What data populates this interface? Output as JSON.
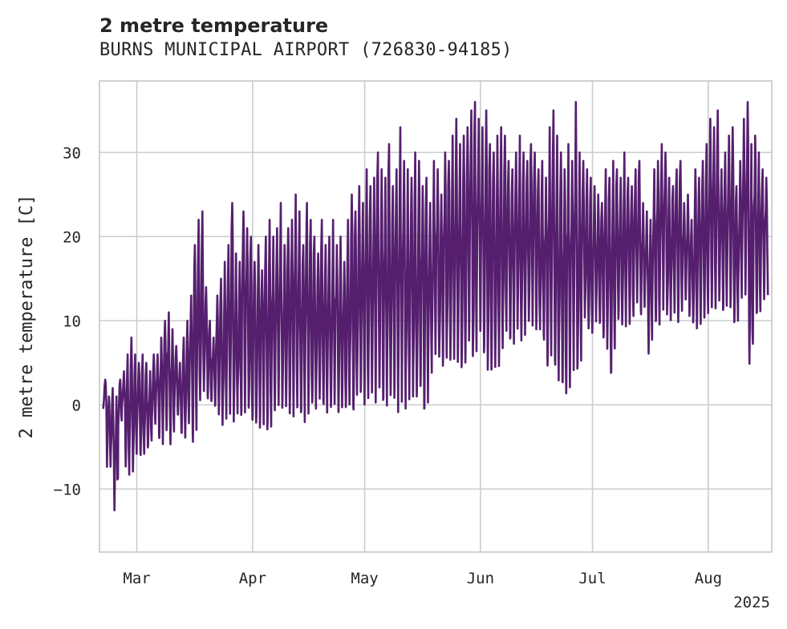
{
  "header": {
    "title": "2 metre temperature",
    "subtitle": "BURNS MUNICIPAL AIRPORT (726830-94185)"
  },
  "colors": {
    "series": "#551f6e",
    "grid": "#cccccc",
    "axis": "#cccccc",
    "text": "#262626"
  },
  "chart_data": {
    "type": "line",
    "title": "2 metre temperature",
    "subtitle": "BURNS MUNICIPAL AIRPORT (726830-94185)",
    "xlabel": "",
    "ylabel": "2 metre temperature [C]",
    "year_label": "2025",
    "xlim": [
      "2025-02-19",
      "2025-08-18"
    ],
    "ylim": [
      -17.5,
      38.5
    ],
    "x_ticks": [
      {
        "date": "2025-03-01",
        "label": "Mar"
      },
      {
        "date": "2025-04-01",
        "label": "Apr"
      },
      {
        "date": "2025-05-01",
        "label": "May"
      },
      {
        "date": "2025-06-01",
        "label": "Jun"
      },
      {
        "date": "2025-07-01",
        "label": "Jul"
      },
      {
        "date": "2025-08-01",
        "label": "Aug"
      }
    ],
    "y_ticks": [
      -10,
      0,
      10,
      20,
      30
    ],
    "grid": true,
    "legend": "none",
    "series": [
      {
        "x": [
          "2025-02-20",
          "2025-02-21",
          "2025-02-22",
          "2025-02-23",
          "2025-02-24",
          "2025-02-25",
          "2025-02-26",
          "2025-02-27",
          "2025-02-28",
          "2025-03-01",
          "2025-03-02",
          "2025-03-03",
          "2025-03-04",
          "2025-03-05",
          "2025-03-06",
          "2025-03-07",
          "2025-03-08",
          "2025-03-09",
          "2025-03-10",
          "2025-03-11",
          "2025-03-12",
          "2025-03-13",
          "2025-03-14",
          "2025-03-15",
          "2025-03-16",
          "2025-03-17",
          "2025-03-18",
          "2025-03-19",
          "2025-03-20",
          "2025-03-21",
          "2025-03-22",
          "2025-03-23",
          "2025-03-24",
          "2025-03-25",
          "2025-03-26",
          "2025-03-27",
          "2025-03-28",
          "2025-03-29",
          "2025-03-30",
          "2025-03-31",
          "2025-04-01",
          "2025-04-02",
          "2025-04-03",
          "2025-04-04",
          "2025-04-05",
          "2025-04-06",
          "2025-04-07",
          "2025-04-08",
          "2025-04-09",
          "2025-04-10",
          "2025-04-11",
          "2025-04-12",
          "2025-04-13",
          "2025-04-14",
          "2025-04-15",
          "2025-04-16",
          "2025-04-17",
          "2025-04-18",
          "2025-04-19",
          "2025-04-20",
          "2025-04-21",
          "2025-04-22",
          "2025-04-23",
          "2025-04-24",
          "2025-04-25",
          "2025-04-26",
          "2025-04-27",
          "2025-04-28",
          "2025-04-29",
          "2025-04-30",
          "2025-05-01",
          "2025-05-02",
          "2025-05-03",
          "2025-05-04",
          "2025-05-05",
          "2025-05-06",
          "2025-05-07",
          "2025-05-08",
          "2025-05-09",
          "2025-05-10",
          "2025-05-11",
          "2025-05-12",
          "2025-05-13",
          "2025-05-14",
          "2025-05-15",
          "2025-05-16",
          "2025-05-17",
          "2025-05-18",
          "2025-05-19",
          "2025-05-20",
          "2025-05-21",
          "2025-05-22",
          "2025-05-23",
          "2025-05-24",
          "2025-05-25",
          "2025-05-26",
          "2025-05-27",
          "2025-05-28",
          "2025-05-29",
          "2025-05-30",
          "2025-05-31",
          "2025-06-01",
          "2025-06-02",
          "2025-06-03",
          "2025-06-04",
          "2025-06-05",
          "2025-06-06",
          "2025-06-07",
          "2025-06-08",
          "2025-06-09",
          "2025-06-10",
          "2025-06-11",
          "2025-06-12",
          "2025-06-13",
          "2025-06-14",
          "2025-06-15",
          "2025-06-16",
          "2025-06-17",
          "2025-06-18",
          "2025-06-19",
          "2025-06-20",
          "2025-06-21",
          "2025-06-22",
          "2025-06-23",
          "2025-06-24",
          "2025-06-25",
          "2025-06-26",
          "2025-06-27",
          "2025-06-28",
          "2025-06-29",
          "2025-06-30",
          "2025-07-01",
          "2025-07-02",
          "2025-07-03",
          "2025-07-04",
          "2025-07-05",
          "2025-07-06",
          "2025-07-07",
          "2025-07-08",
          "2025-07-09",
          "2025-07-10",
          "2025-07-11",
          "2025-07-12",
          "2025-07-13",
          "2025-07-14",
          "2025-07-15",
          "2025-07-16",
          "2025-07-17",
          "2025-07-18",
          "2025-07-19",
          "2025-07-20",
          "2025-07-21",
          "2025-07-22",
          "2025-07-23",
          "2025-07-24",
          "2025-07-25",
          "2025-07-26",
          "2025-07-27",
          "2025-07-28",
          "2025-07-29",
          "2025-07-30",
          "2025-07-31",
          "2025-08-01",
          "2025-08-02",
          "2025-08-03",
          "2025-08-04",
          "2025-08-05",
          "2025-08-06",
          "2025-08-07",
          "2025-08-08",
          "2025-08-09",
          "2025-08-10",
          "2025-08-11",
          "2025-08-12",
          "2025-08-13",
          "2025-08-14",
          "2025-08-15",
          "2025-08-16"
        ],
        "min": [
          -1,
          -8,
          -7,
          -15,
          -3,
          -1,
          -10,
          -8,
          -8,
          -4,
          -7,
          -5,
          -6,
          -3,
          -2,
          -6,
          -4,
          -3,
          -6,
          -1,
          -2,
          -5,
          -4,
          -1,
          -6,
          -2,
          1,
          2,
          0,
          0,
          -1,
          -2,
          -3,
          -1,
          -2,
          -3,
          -1,
          -3,
          0,
          -2,
          -3,
          -3,
          -3,
          -2,
          -4,
          -2,
          -1,
          0,
          -2,
          0,
          -3,
          -1,
          0,
          -4,
          -2,
          -1,
          0,
          -1,
          1,
          -2,
          0,
          -1,
          1,
          -2,
          0,
          -1,
          1,
          -2,
          2,
          0,
          -2,
          2,
          -1,
          0,
          2,
          -1,
          0,
          1,
          -1,
          -1,
          0,
          -1,
          2,
          0,
          1,
          1,
          -3,
          3,
          4,
          6,
          4,
          4,
          5,
          5,
          5,
          4,
          3,
          5,
          8,
          1,
          9,
          7,
          3,
          3,
          4,
          3,
          5,
          7,
          9,
          6,
          8,
          8,
          7,
          9,
          10,
          8,
          8,
          9,
          6,
          3,
          8,
          1,
          3,
          1,
          1,
          3,
          5,
          1,
          9,
          10,
          8,
          9,
          10,
          9,
          7,
          5,
          2,
          9,
          10,
          8,
          10,
          9,
          11,
          12,
          10,
          12,
          5,
          10,
          9,
          10,
          11,
          9,
          11,
          10,
          9,
          13,
          11,
          10,
          9,
          8,
          10,
          9,
          12,
          10,
          11,
          12,
          10,
          12,
          10,
          9,
          11,
          13,
          12,
          1,
          11,
          10,
          12,
          13,
          9,
          8,
          10,
          12
        ],
        "max": [
          3,
          1,
          2,
          1,
          3,
          4,
          6,
          8,
          6,
          5,
          6,
          5,
          4,
          6,
          6,
          8,
          10,
          11,
          9,
          7,
          5,
          8,
          10,
          13,
          19,
          22,
          23,
          14,
          10,
          8,
          13,
          15,
          17,
          19,
          24,
          18,
          17,
          23,
          21,
          20,
          17,
          19,
          16,
          20,
          22,
          20,
          21,
          24,
          19,
          21,
          22,
          25,
          23,
          19,
          24,
          22,
          20,
          18,
          22,
          19,
          20,
          22,
          19,
          20,
          17,
          22,
          25,
          23,
          26,
          24,
          28,
          26,
          27,
          30,
          28,
          27,
          31,
          26,
          28,
          33,
          29,
          28,
          27,
          30,
          29,
          26,
          27,
          24,
          29,
          28,
          25,
          30,
          29,
          32,
          34,
          31,
          32,
          33,
          35,
          36,
          34,
          33,
          35,
          31,
          30,
          32,
          33,
          32,
          29,
          28,
          30,
          32,
          30,
          29,
          31,
          30,
          28,
          29,
          27,
          33,
          35,
          32,
          30,
          28,
          31,
          29,
          36,
          30,
          29,
          28,
          27,
          26,
          25,
          24,
          28,
          27,
          29,
          28,
          27,
          30,
          27,
          26,
          28,
          29,
          24,
          23,
          22,
          28,
          29,
          31,
          30,
          27,
          26,
          28,
          29,
          24,
          25,
          22,
          28,
          27,
          29,
          31,
          34,
          33,
          35,
          28,
          30,
          32,
          33,
          26,
          29,
          34,
          36,
          31,
          32,
          30,
          28,
          27,
          29,
          30,
          28
        ]
      }
    ]
  }
}
